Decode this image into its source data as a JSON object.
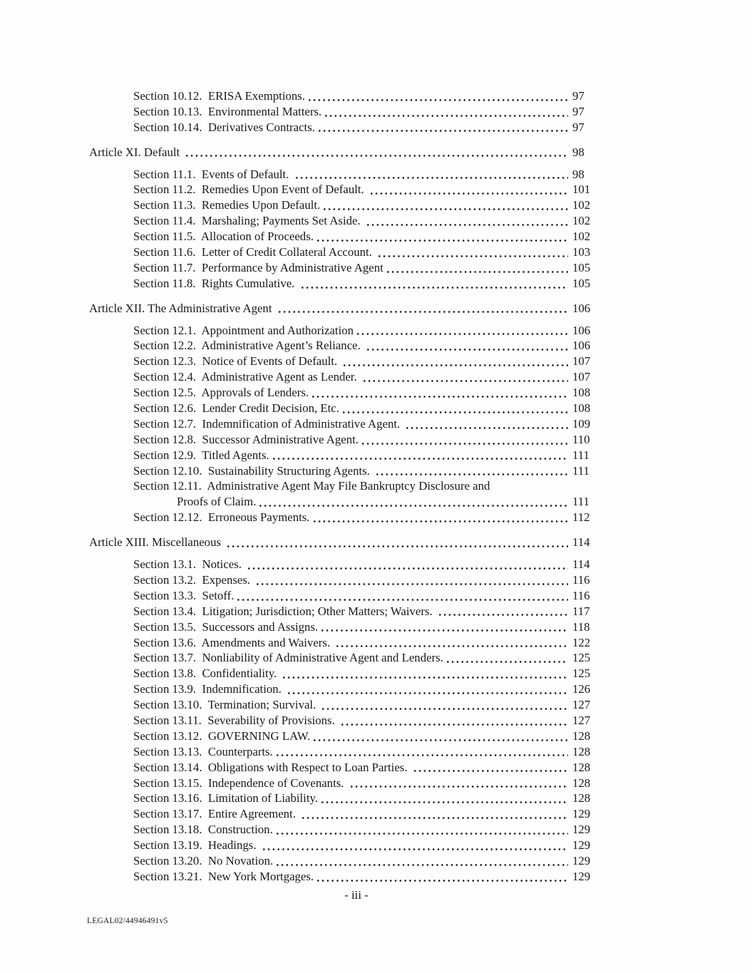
{
  "page": {
    "footer_page_label": "- iii -",
    "doc_id": "LEGAL02/44946491v5"
  },
  "toc": {
    "entries": [
      {
        "type": "section",
        "label": "Section 10.12.  ERISA Exemptions.",
        "page": "97"
      },
      {
        "type": "section",
        "label": "Section 10.13.  Environmental Matters.",
        "page": "97"
      },
      {
        "type": "section",
        "label": "Section 10.14.  Derivatives Contracts.",
        "page": "97"
      },
      {
        "type": "article",
        "label": "Article XI. Default ",
        "page": "98"
      },
      {
        "type": "section",
        "label": "Section 11.1.  Events of Default. ",
        "page": "98"
      },
      {
        "type": "section",
        "label": "Section 11.2.  Remedies Upon Event of Default. ",
        "page": "101"
      },
      {
        "type": "section",
        "label": "Section 11.3.  Remedies Upon Default.",
        "page": "102"
      },
      {
        "type": "section",
        "label": "Section 11.4.  Marshaling; Payments Set Aside. ",
        "page": "102"
      },
      {
        "type": "section",
        "label": "Section 11.5.  Allocation of Proceeds.",
        "page": "102"
      },
      {
        "type": "section",
        "label": "Section 11.6.  Letter of Credit Collateral Account. ",
        "page": "103"
      },
      {
        "type": "section",
        "label": "Section 11.7.  Performance by Administrative Agent",
        "page": "105"
      },
      {
        "type": "section",
        "label": "Section 11.8.  Rights Cumulative. ",
        "page": "105"
      },
      {
        "type": "article",
        "label": "Article XII. The Administrative Agent ",
        "page": "106"
      },
      {
        "type": "section",
        "label": "Section 12.1.  Appointment and Authorization",
        "page": "106"
      },
      {
        "type": "section",
        "label": "Section 12.2.  Administrative Agent’s Reliance. ",
        "page": "106"
      },
      {
        "type": "section",
        "label": "Section 12.3.  Notice of Events of Default. ",
        "page": "107"
      },
      {
        "type": "section",
        "label": "Section 12.4.  Administrative Agent as Lender. ",
        "page": "107"
      },
      {
        "type": "section",
        "label": "Section 12.5.  Approvals of Lenders.",
        "page": "108"
      },
      {
        "type": "section",
        "label": "Section 12.6.  Lender Credit Decision, Etc.",
        "page": "108"
      },
      {
        "type": "section",
        "label": "Section 12.7.  Indemnification of Administrative Agent. ",
        "page": "109"
      },
      {
        "type": "section",
        "label": "Section 12.8.  Successor Administrative Agent.",
        "page": "110"
      },
      {
        "type": "section",
        "label": "Section 12.9.  Titled Agents.",
        "page": "111"
      },
      {
        "type": "section",
        "label": "Section 12.10.  Sustainability Structuring Agents. ",
        "page": "111"
      },
      {
        "type": "section",
        "label": "Section 12.11.  Administrative Agent May File Bankruptcy Disclosure and",
        "page": null
      },
      {
        "type": "cont",
        "label": "Proofs of Claim.",
        "page": "111"
      },
      {
        "type": "section",
        "label": "Section 12.12.  Erroneous Payments.",
        "page": "112"
      },
      {
        "type": "article",
        "label": "Article XIII. Miscellaneous ",
        "page": "114"
      },
      {
        "type": "section",
        "label": "Section 13.1.  Notices. ",
        "page": "114"
      },
      {
        "type": "section",
        "label": "Section 13.2.  Expenses. ",
        "page": "116"
      },
      {
        "type": "section",
        "label": "Section 13.3.  Setoff.",
        "page": "116"
      },
      {
        "type": "section",
        "label": "Section 13.4.  Litigation; Jurisdiction; Other Matters; Waivers. ",
        "page": "117"
      },
      {
        "type": "section",
        "label": "Section 13.5.  Successors and Assigns.",
        "page": "118"
      },
      {
        "type": "section",
        "label": "Section 13.6.  Amendments and Waivers. ",
        "page": "122"
      },
      {
        "type": "section",
        "label": "Section 13.7.  Nonliability of Administrative Agent and Lenders.",
        "page": "125"
      },
      {
        "type": "section",
        "label": "Section 13.8.  Confidentiality. ",
        "page": "125"
      },
      {
        "type": "section",
        "label": "Section 13.9.  Indemnification. ",
        "page": "126"
      },
      {
        "type": "section",
        "label": "Section 13.10.  Termination; Survival. ",
        "page": "127"
      },
      {
        "type": "section",
        "label": "Section 13.11.  Severability of Provisions. ",
        "page": "127"
      },
      {
        "type": "section",
        "label": "Section 13.12.  GOVERNING LAW.",
        "page": "128"
      },
      {
        "type": "section",
        "label": "Section 13.13.  Counterparts.",
        "page": "128"
      },
      {
        "type": "section",
        "label": "Section 13.14.  Obligations with Respect to Loan Parties. ",
        "page": "128"
      },
      {
        "type": "section",
        "label": "Section 13.15.  Independence of Covenants. ",
        "page": "128"
      },
      {
        "type": "section",
        "label": "Section 13.16.  Limitation of Liability.",
        "page": "128"
      },
      {
        "type": "section",
        "label": "Section 13.17.  Entire Agreement. ",
        "page": "129"
      },
      {
        "type": "section",
        "label": "Section 13.18.  Construction.",
        "page": "129"
      },
      {
        "type": "section",
        "label": "Section 13.19.  Headings. ",
        "page": "129"
      },
      {
        "type": "section",
        "label": "Section 13.20.  No Novation.",
        "page": "129"
      },
      {
        "type": "section",
        "label": "Section 13.21.  New York Mortgages.",
        "page": "129"
      }
    ]
  }
}
